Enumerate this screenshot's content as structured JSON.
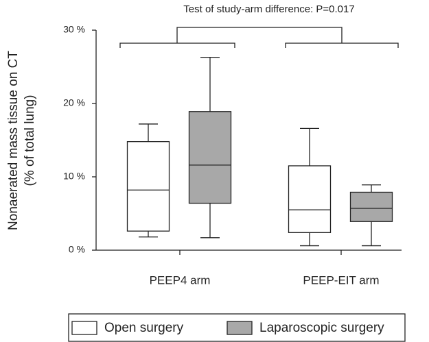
{
  "chart_data": {
    "type": "box",
    "annotation": "Test of study-arm difference: P=0.017",
    "y_label": [
      "Nonaerated mass tissue on CT",
      "(% of total lung)"
    ],
    "categories": [
      "PEEP4 arm",
      "PEEP-EIT arm"
    ],
    "series": [
      {
        "name": "Open surgery",
        "color": "#ffffff",
        "low": [
          1.8,
          0.6
        ],
        "q1": [
          2.6,
          2.4
        ],
        "median": [
          8.2,
          5.5
        ],
        "q3": [
          14.8,
          11.5
        ],
        "high": [
          17.2,
          16.6
        ]
      },
      {
        "name": "Laparoscopic surgery",
        "color": "#a8a8a8",
        "low": [
          1.7,
          0.6
        ],
        "q1": [
          6.4,
          3.9
        ],
        "median": [
          11.6,
          5.7
        ],
        "q3": [
          18.9,
          7.9
        ],
        "high": [
          26.3,
          8.9
        ]
      }
    ],
    "ylim": [
      0,
      30
    ],
    "yticks": [
      {
        "value": 0,
        "label": "0 %"
      },
      {
        "value": 10,
        "label": "10 %"
      },
      {
        "value": 20,
        "label": "20 %"
      },
      {
        "value": 30,
        "label": "30 %"
      }
    ]
  }
}
